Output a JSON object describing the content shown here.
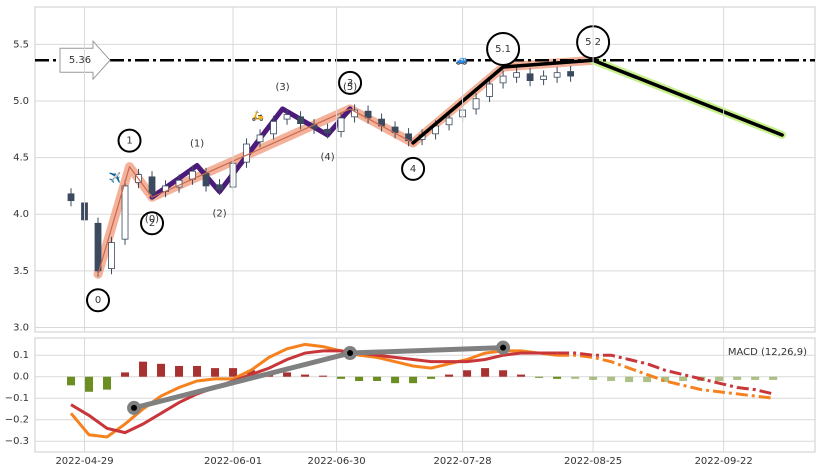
{
  "chart_data": [
    {
      "type": "candlestick",
      "x": [
        8,
        11,
        14,
        17,
        20,
        23,
        26,
        29,
        32,
        35,
        38,
        41,
        44,
        47,
        50,
        53,
        56,
        59,
        62,
        65,
        68,
        71,
        74,
        77,
        80,
        83,
        86,
        89,
        92,
        95,
        98,
        101,
        104,
        107,
        110,
        113,
        116,
        119
      ],
      "open": [
        4.18,
        4.1,
        3.92,
        3.52,
        3.78,
        4.28,
        4.33,
        4.2,
        4.24,
        4.31,
        4.36,
        4.26,
        4.24,
        4.46,
        4.64,
        4.71,
        4.84,
        4.86,
        4.79,
        4.75,
        4.73,
        4.86,
        4.91,
        4.84,
        4.77,
        4.71,
        4.66,
        4.71,
        4.79,
        4.86,
        4.93,
        5.04,
        5.16,
        5.21,
        5.24,
        5.19,
        5.21,
        5.26
      ],
      "high": [
        4.23,
        4.15,
        3.97,
        3.8,
        4.3,
        4.4,
        4.38,
        4.3,
        4.35,
        4.43,
        4.41,
        4.31,
        4.5,
        4.67,
        4.75,
        4.87,
        4.93,
        4.91,
        4.84,
        4.8,
        4.9,
        4.97,
        4.96,
        4.89,
        4.82,
        4.76,
        4.75,
        4.83,
        4.9,
        4.97,
        5.07,
        5.2,
        5.27,
        5.3,
        5.29,
        5.27,
        5.3,
        5.31
      ],
      "low": [
        4.07,
        3.9,
        3.45,
        3.47,
        3.73,
        4.23,
        4.13,
        4.15,
        4.19,
        4.26,
        4.2,
        4.17,
        4.19,
        4.41,
        4.59,
        4.66,
        4.79,
        4.75,
        4.71,
        4.67,
        4.68,
        4.81,
        4.8,
        4.73,
        4.67,
        4.6,
        4.61,
        4.66,
        4.74,
        4.81,
        4.88,
        4.99,
        5.11,
        5.16,
        5.13,
        5.14,
        5.16,
        5.17
      ],
      "close": [
        4.12,
        3.95,
        3.5,
        3.75,
        4.25,
        4.35,
        4.18,
        4.25,
        4.3,
        4.38,
        4.25,
        4.22,
        4.45,
        4.62,
        4.7,
        4.82,
        4.88,
        4.8,
        4.76,
        4.72,
        4.85,
        4.92,
        4.85,
        4.78,
        4.72,
        4.65,
        4.7,
        4.78,
        4.85,
        4.92,
        5.02,
        5.15,
        5.22,
        5.25,
        5.18,
        5.22,
        5.25,
        5.22
      ],
      "up_color": "#ffffff",
      "down_color": "#3b4a5e",
      "hline": 5.36,
      "main_wave": {
        "color": "#f2a488",
        "x": [
          14,
          21,
          26,
          70,
          84
        ],
        "y": [
          3.47,
          4.42,
          4.15,
          4.93,
          4.63
        ],
        "labels": [
          "0",
          "1",
          "2",
          "3",
          "4"
        ]
      },
      "sub_wave": {
        "color": "#4b1a7a",
        "x": [
          26,
          36,
          41,
          55,
          65,
          70
        ],
        "y": [
          4.15,
          4.43,
          4.2,
          4.93,
          4.7,
          4.93
        ],
        "labels": [
          "(0)",
          "(1)",
          "(2)",
          "(3)",
          "(4)",
          "(5)"
        ]
      },
      "impulse": {
        "color": "#000000",
        "x": [
          84,
          104,
          124
        ],
        "y": [
          4.63,
          5.3,
          5.36
        ],
        "labels": [
          "4",
          "5.1",
          "5.2"
        ]
      },
      "projection": {
        "color": "#000000",
        "halo": "#c8f08c",
        "x": [
          124,
          166
        ],
        "y": [
          5.36,
          4.7
        ]
      },
      "xlim": [
        0,
        173.3
      ],
      "ylim": [
        2.96,
        5.83
      ],
      "yticks": [
        {
          "value": 3,
          "label": "3.0"
        },
        3.5,
        {
          "value": 4,
          "label": "4.0"
        },
        4.5,
        {
          "value": 5,
          "label": "5.0"
        },
        5.5
      ],
      "grid": true
    },
    {
      "type": "macd",
      "label": "MACD (12,26,9)",
      "x": [
        8,
        12,
        16,
        20,
        24,
        28,
        32,
        36,
        40,
        44,
        48,
        52,
        56,
        60,
        64,
        68,
        72,
        76,
        80,
        84,
        88,
        92,
        96,
        100,
        104,
        108,
        112,
        116,
        120,
        124,
        128,
        132,
        136,
        140,
        144,
        148,
        152,
        156,
        160,
        164
      ],
      "histogram": [
        -0.04,
        -0.07,
        -0.06,
        0.02,
        0.07,
        0.06,
        0.05,
        0.05,
        0.04,
        0.04,
        0.03,
        0.02,
        0.02,
        0.01,
        0.005,
        -0.01,
        -0.02,
        -0.02,
        -0.03,
        -0.03,
        -0.01,
        0.01,
        0.03,
        0.04,
        0.03,
        0.01,
        -0.005,
        -0.01,
        -0.01,
        -0.015,
        -0.02,
        -0.025,
        -0.025,
        -0.025,
        -0.02,
        -0.02,
        -0.02,
        -0.015,
        -0.015,
        -0.015
      ],
      "macd": [
        -0.17,
        -0.27,
        -0.28,
        -0.22,
        -0.15,
        -0.09,
        -0.05,
        -0.02,
        -0.01,
        -0.01,
        0.03,
        0.09,
        0.13,
        0.15,
        0.14,
        0.12,
        0.1,
        0.09,
        0.07,
        0.05,
        0.04,
        0.06,
        0.08,
        0.11,
        0.12,
        0.12,
        0.11,
        0.1,
        0.1,
        0.09,
        0.07,
        0.04,
        0.01,
        -0.02,
        -0.04,
        -0.06,
        -0.07,
        -0.08,
        -0.09,
        -0.1
      ],
      "signal": [
        -0.13,
        -0.18,
        -0.24,
        -0.26,
        -0.22,
        -0.17,
        -0.12,
        -0.08,
        -0.05,
        -0.02,
        0.01,
        0.04,
        0.08,
        0.11,
        0.12,
        0.12,
        0.11,
        0.1,
        0.09,
        0.08,
        0.07,
        0.07,
        0.07,
        0.08,
        0.1,
        0.11,
        0.11,
        0.11,
        0.11,
        0.1,
        0.1,
        0.08,
        0.06,
        0.03,
        0.01,
        -0.01,
        -0.03,
        -0.05,
        -0.06,
        -0.08
      ],
      "macd_color": "#f5821f",
      "signal_color": "#c8363a",
      "pos_color": "#a83232",
      "neg_color": "#6b8e23",
      "projection_start": 116,
      "trend": {
        "color": "#808080",
        "x": [
          22,
          70,
          104
        ],
        "y": [
          -0.145,
          0.11,
          0.135
        ]
      },
      "xlim": [
        0,
        173.3
      ],
      "ylim": [
        -0.35,
        0.18
      ],
      "yticks": [
        {
          "value": -0.3,
          "label": "−0.3"
        },
        {
          "value": -0.2,
          "label": "−0.2"
        },
        {
          "value": -0.1,
          "label": "−0.1"
        },
        {
          "value": 0,
          "label": "0.0"
        },
        0.1
      ],
      "xticks": [
        {
          "value": 11,
          "label": "2022-04-29"
        },
        {
          "value": 44,
          "label": "2022-06-01"
        },
        {
          "value": 67,
          "label": "2022-06-30"
        },
        {
          "value": 95,
          "label": "2022-07-28"
        },
        {
          "value": 124,
          "label": "2022-08-25"
        },
        {
          "value": 153,
          "label": "2022-09-22"
        }
      ],
      "grid": true
    }
  ]
}
